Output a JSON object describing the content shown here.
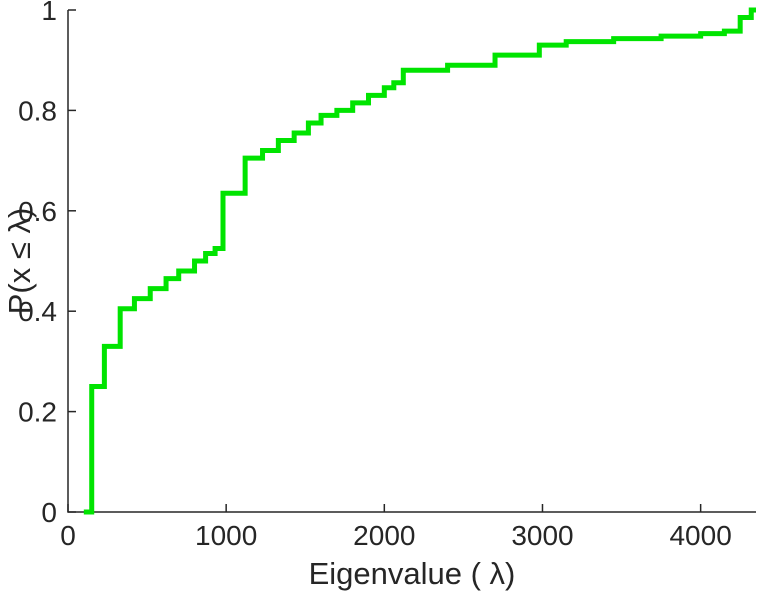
{
  "chart_data": {
    "type": "line",
    "style": "stairs-ecdf",
    "title": "",
    "xlabel": "Eigenvalue (  λ)",
    "ylabel": "P(x ≤ λ)",
    "xlim": [
      0,
      4350
    ],
    "ylim": [
      0,
      1
    ],
    "xticks": [
      0,
      1000,
      2000,
      3000,
      4000
    ],
    "yticks": [
      0,
      0.2,
      0.4,
      0.6,
      0.8,
      1
    ],
    "grid": false,
    "legend": null,
    "line_color": "#00E400",
    "axis_color": "#262626",
    "background_color": "#ffffff",
    "start_x": 100,
    "steps": [
      {
        "x": 150,
        "p": 0.25
      },
      {
        "x": 230,
        "p": 0.33
      },
      {
        "x": 330,
        "p": 0.405
      },
      {
        "x": 420,
        "p": 0.425
      },
      {
        "x": 520,
        "p": 0.445
      },
      {
        "x": 620,
        "p": 0.465
      },
      {
        "x": 700,
        "p": 0.48
      },
      {
        "x": 800,
        "p": 0.5
      },
      {
        "x": 870,
        "p": 0.515
      },
      {
        "x": 930,
        "p": 0.525
      },
      {
        "x": 980,
        "p": 0.635
      },
      {
        "x": 1120,
        "p": 0.705
      },
      {
        "x": 1230,
        "p": 0.72
      },
      {
        "x": 1330,
        "p": 0.74
      },
      {
        "x": 1430,
        "p": 0.755
      },
      {
        "x": 1520,
        "p": 0.775
      },
      {
        "x": 1600,
        "p": 0.79
      },
      {
        "x": 1700,
        "p": 0.8
      },
      {
        "x": 1800,
        "p": 0.815
      },
      {
        "x": 1900,
        "p": 0.83
      },
      {
        "x": 2000,
        "p": 0.845
      },
      {
        "x": 2060,
        "p": 0.855
      },
      {
        "x": 2120,
        "p": 0.88
      },
      {
        "x": 2400,
        "p": 0.89
      },
      {
        "x": 2700,
        "p": 0.91
      },
      {
        "x": 2980,
        "p": 0.93
      },
      {
        "x": 3150,
        "p": 0.937
      },
      {
        "x": 3450,
        "p": 0.943
      },
      {
        "x": 3750,
        "p": 0.948
      },
      {
        "x": 4000,
        "p": 0.953
      },
      {
        "x": 4150,
        "p": 0.958
      },
      {
        "x": 4250,
        "p": 0.985
      },
      {
        "x": 4320,
        "p": 1.0
      }
    ]
  }
}
